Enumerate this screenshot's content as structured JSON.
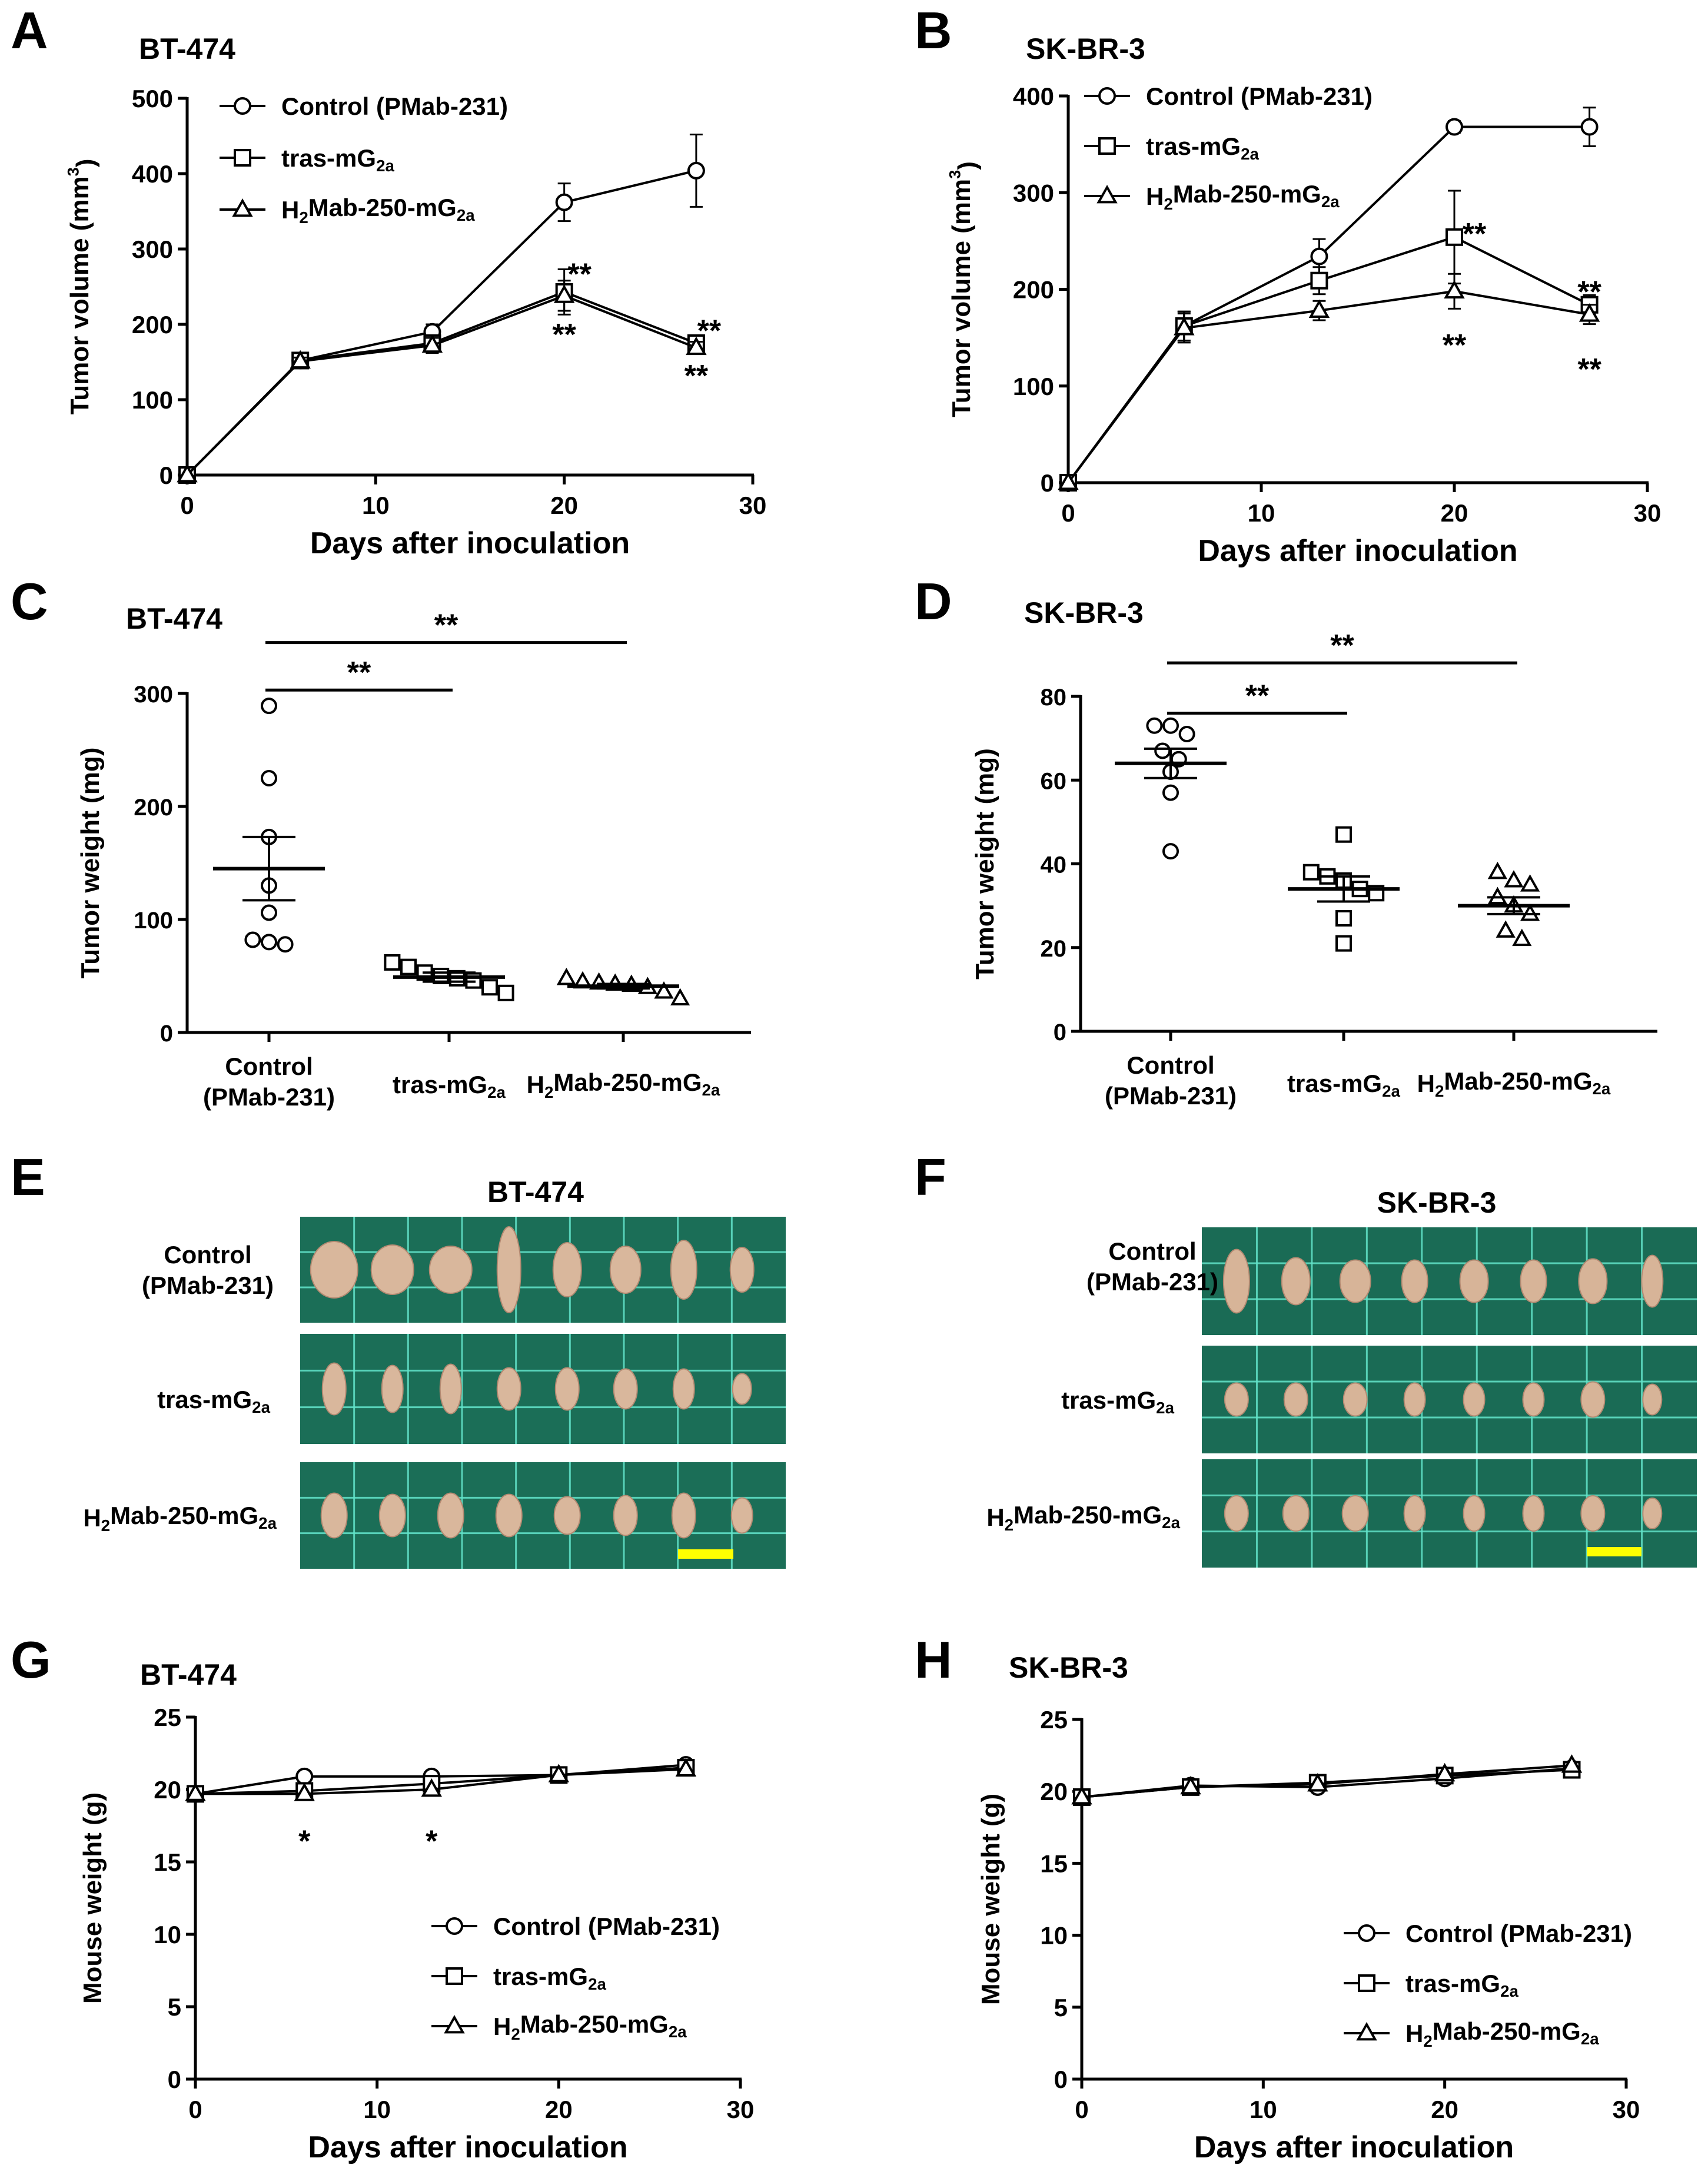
{
  "figure": {
    "panel_letters": [
      "A",
      "B",
      "C",
      "D",
      "E",
      "F",
      "G",
      "H"
    ],
    "sig_double": "**",
    "sig_single": "*"
  },
  "legend": {
    "control": "Control (PMab-231)",
    "tras_prefix": "tras-mG",
    "h2_prefix": "H",
    "h2_mid": "Mab-250-mG",
    "sub_2": "2",
    "sub_2a": "2a"
  },
  "categories": {
    "control_line1": "Control",
    "control_line2": "(PMab-231)"
  },
  "photos": [
    {
      "panel": "E",
      "title": "BT-474",
      "tissue_color": "#d9b79c",
      "board_color": "#1b6e57",
      "grid_color": "#62e3c9",
      "scalebar_color": "#ffff00"
    },
    {
      "panel": "F",
      "title": "SK-BR-3",
      "tissue_color": "#d7b498",
      "board_color": "#1a6b55",
      "grid_color": "#62e3c9",
      "scalebar_color": "#ffff00"
    }
  ],
  "chart_data": [
    {
      "panel": "A",
      "type": "line",
      "title": "BT-474",
      "xlabel": "Days after inoculation",
      "ylabel": "Tumor volume (mm3)",
      "xlim": [
        0,
        30
      ],
      "ylim": [
        0,
        500
      ],
      "xticks": [
        0,
        10,
        20,
        30
      ],
      "yticks": [
        0,
        100,
        200,
        300,
        400,
        500
      ],
      "x": [
        0,
        6,
        13,
        20,
        27
      ],
      "series": [
        {
          "name": "Control (PMab-231)",
          "marker": "circle",
          "values": [
            0,
            152,
            190,
            362,
            404
          ],
          "err": [
            0,
            5,
            10,
            25,
            48
          ]
        },
        {
          "name": "tras-mG2a",
          "marker": "square",
          "values": [
            0,
            152,
            175,
            243,
            175
          ],
          "err": [
            0,
            5,
            10,
            30,
            8
          ]
        },
        {
          "name": "H2Mab-250-mG2a",
          "marker": "triangle",
          "values": [
            0,
            151,
            172,
            238,
            169
          ],
          "err": [
            0,
            5,
            10,
            20,
            8
          ]
        }
      ],
      "annotations": [
        {
          "text": "**",
          "x": 20,
          "y": 270,
          "dx": 26
        },
        {
          "text": "**",
          "x": 20,
          "y": 190,
          "dx": 0
        },
        {
          "text": "**",
          "x": 27,
          "y": 195,
          "dx": 22
        },
        {
          "text": "**",
          "x": 27,
          "y": 135,
          "dx": 0
        }
      ]
    },
    {
      "panel": "B",
      "type": "line",
      "title": "SK-BR-3",
      "xlabel": "Days after inoculation",
      "ylabel": "Tumor volume (mm3)",
      "xlim": [
        0,
        30
      ],
      "ylim": [
        0,
        400
      ],
      "xticks": [
        0,
        10,
        20,
        30
      ],
      "yticks": [
        0,
        100,
        200,
        300,
        400
      ],
      "x": [
        0,
        6,
        13,
        20,
        27
      ],
      "series": [
        {
          "name": "Control (PMab-231)",
          "marker": "circle",
          "values": [
            0,
            162,
            234,
            368,
            368
          ],
          "err": [
            0,
            15,
            18,
            6,
            20
          ]
        },
        {
          "name": "tras-mG2a",
          "marker": "square",
          "values": [
            0,
            162,
            209,
            254,
            184
          ],
          "err": [
            0,
            15,
            14,
            48,
            10
          ]
        },
        {
          "name": "H2Mab-250-mG2a",
          "marker": "triangle",
          "values": [
            0,
            160,
            178,
            198,
            174
          ],
          "err": [
            0,
            15,
            10,
            18,
            10
          ]
        }
      ],
      "annotations": [
        {
          "text": "**",
          "x": 20,
          "y": 260,
          "dx": 34
        },
        {
          "text": "**",
          "x": 20,
          "y": 145,
          "dx": 0
        },
        {
          "text": "**",
          "x": 27,
          "y": 200,
          "dx": 0
        },
        {
          "text": "**",
          "x": 27,
          "y": 120,
          "dx": 0
        }
      ]
    },
    {
      "panel": "C",
      "type": "scatter",
      "title": "BT-474",
      "xlabel": "",
      "ylabel": "Tumor weight (mg)",
      "ylim": [
        0,
        300
      ],
      "yticks": [
        0,
        100,
        200,
        300
      ],
      "groups": [
        {
          "marker": "circle",
          "values": [
            289,
            225,
            173,
            130,
            106,
            82,
            80,
            78
          ],
          "mean": 145,
          "sem": 28
        },
        {
          "marker": "square",
          "values": [
            62,
            58,
            53,
            50,
            48,
            46,
            40,
            35
          ],
          "mean": 49,
          "sem": 4
        },
        {
          "marker": "triangle",
          "values": [
            48,
            45,
            44,
            43,
            42,
            40,
            36,
            30
          ],
          "mean": 41,
          "sem": 2
        }
      ],
      "brackets": [
        {
          "from": 0,
          "to": 2,
          "y": 345,
          "text": "**"
        },
        {
          "from": 0,
          "to": 1,
          "y": 303,
          "text": "**"
        }
      ]
    },
    {
      "panel": "D",
      "type": "scatter",
      "title": "SK-BR-3",
      "xlabel": "",
      "ylabel": "Tumor weight (mg)",
      "ylim": [
        0,
        80
      ],
      "yticks": [
        0,
        20,
        40,
        60,
        80
      ],
      "groups": [
        {
          "marker": "circle",
          "values": [
            73,
            73,
            71,
            67,
            65,
            62,
            57,
            43
          ],
          "mean": 64,
          "sem": 3.5
        },
        {
          "marker": "square",
          "values": [
            47,
            38,
            37,
            36,
            34,
            33,
            27,
            21
          ],
          "mean": 34,
          "sem": 3
        },
        {
          "marker": "triangle",
          "values": [
            38,
            36,
            35,
            32,
            30,
            28,
            24,
            22
          ],
          "mean": 30,
          "sem": 2
        }
      ],
      "brackets": [
        {
          "from": 0,
          "to": 2,
          "y": 88,
          "text": "**"
        },
        {
          "from": 0,
          "to": 1,
          "y": 76,
          "text": "**"
        }
      ]
    },
    {
      "panel": "G",
      "type": "line",
      "title": "BT-474",
      "xlabel": "Days after inoculation",
      "ylabel": "Mouse weight (g)",
      "xlim": [
        0,
        30
      ],
      "ylim": [
        0,
        25
      ],
      "xticks": [
        0,
        10,
        20,
        30
      ],
      "yticks": [
        0,
        5,
        10,
        15,
        20,
        25
      ],
      "x": [
        0,
        6,
        13,
        20,
        27
      ],
      "series": [
        {
          "name": "Control (PMab-231)",
          "marker": "circle",
          "values": [
            19.7,
            20.9,
            20.9,
            21.0,
            21.7
          ],
          "err": [
            0,
            0,
            0,
            0,
            0
          ]
        },
        {
          "name": "tras-mG2a",
          "marker": "square",
          "values": [
            19.7,
            19.9,
            20.4,
            21.0,
            21.5
          ],
          "err": [
            0,
            0,
            0,
            0,
            0
          ]
        },
        {
          "name": "H2Mab-250-mG2a",
          "marker": "triangle",
          "values": [
            19.7,
            19.7,
            20.0,
            21.0,
            21.4
          ],
          "err": [
            0,
            0,
            0,
            0,
            0
          ]
        }
      ],
      "annotations": [
        {
          "text": "*",
          "x": 6,
          "y": 16.6,
          "dx": 0
        },
        {
          "text": "*",
          "x": 13,
          "y": 16.6,
          "dx": 0
        }
      ]
    },
    {
      "panel": "H",
      "type": "line",
      "title": "SK-BR-3",
      "xlabel": "Days after inoculation",
      "ylabel": "Mouse weight (g)",
      "xlim": [
        0,
        30
      ],
      "ylim": [
        0,
        25
      ],
      "xticks": [
        0,
        10,
        20,
        30
      ],
      "yticks": [
        0,
        5,
        10,
        15,
        20,
        25
      ],
      "x": [
        0,
        6,
        13,
        20,
        27
      ],
      "series": [
        {
          "name": "Control (PMab-231)",
          "marker": "circle",
          "values": [
            19.6,
            20.4,
            20.3,
            20.9,
            21.6
          ],
          "err": [
            0,
            0,
            0,
            0,
            0
          ]
        },
        {
          "name": "tras-mG2a",
          "marker": "square",
          "values": [
            19.6,
            20.3,
            20.6,
            21.1,
            21.5
          ],
          "err": [
            0,
            0,
            0,
            0,
            0
          ]
        },
        {
          "name": "H2Mab-250-mG2a",
          "marker": "triangle",
          "values": [
            19.6,
            20.3,
            20.5,
            21.2,
            21.8
          ],
          "err": [
            0,
            0,
            0,
            0,
            0
          ]
        }
      ],
      "annotations": []
    }
  ]
}
